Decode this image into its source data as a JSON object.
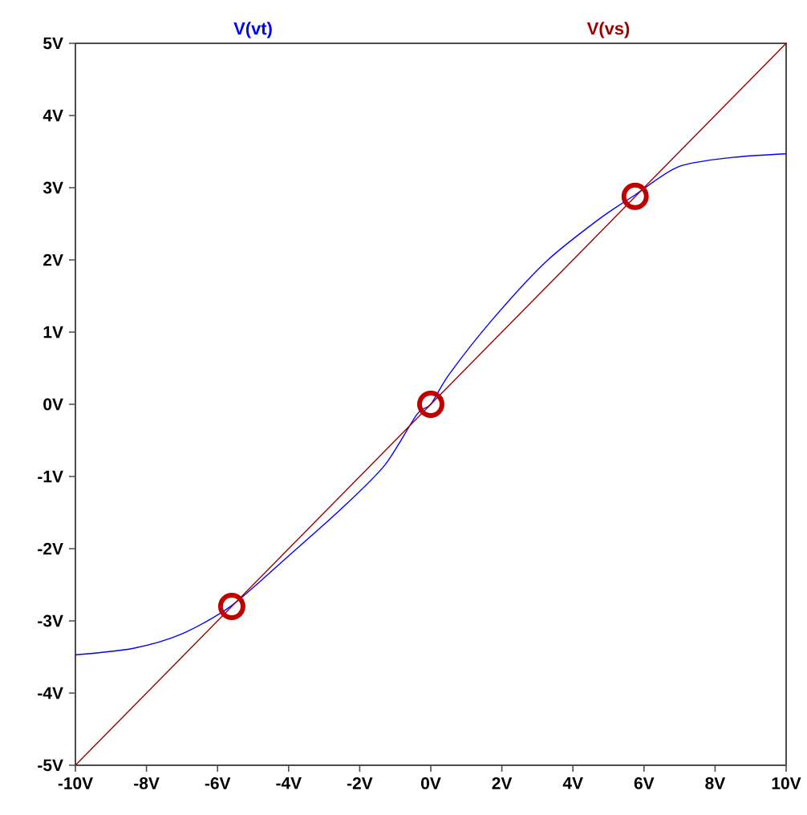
{
  "chart_data": {
    "type": "line",
    "legend": "top",
    "grid": false,
    "xlim": [
      -10,
      10
    ],
    "xticks": [
      {
        "value": -10,
        "label": "-10V"
      },
      {
        "value": -8,
        "label": "-8V"
      },
      {
        "value": -6,
        "label": "-6V"
      },
      {
        "value": -4,
        "label": "-4V"
      },
      {
        "value": -2,
        "label": "-2V"
      },
      {
        "value": 0,
        "label": "0V"
      },
      {
        "value": 2,
        "label": "2V"
      },
      {
        "value": 4,
        "label": "4V"
      },
      {
        "value": 6,
        "label": "6V"
      },
      {
        "value": 8,
        "label": "8V"
      },
      {
        "value": 10,
        "label": "10V"
      }
    ],
    "ylim": [
      -5,
      5
    ],
    "yticks": [
      {
        "value": -5,
        "label": "-5V"
      },
      {
        "value": -4,
        "label": "-4V"
      },
      {
        "value": -3,
        "label": "-3V"
      },
      {
        "value": -2,
        "label": "-2V"
      },
      {
        "value": -1,
        "label": "-1V"
      },
      {
        "value": 0,
        "label": "0V"
      },
      {
        "value": 1,
        "label": "1V"
      },
      {
        "value": 2,
        "label": "2V"
      },
      {
        "value": 3,
        "label": "3V"
      },
      {
        "value": 4,
        "label": "4V"
      },
      {
        "value": 5,
        "label": "5V"
      }
    ],
    "series": [
      {
        "name": "V(vt)",
        "color": "#0000ff",
        "x": [
          -10,
          -8.37,
          -7.0,
          -5.61,
          -4.0,
          -2.5,
          -1.29,
          -0.39,
          0,
          0.51,
          1.71,
          3.23,
          4.72,
          5.75,
          6.97,
          8.5,
          10
        ],
        "values": [
          -3.47,
          -3.38,
          -3.18,
          -2.79,
          -2.1,
          -1.44,
          -0.84,
          -0.14,
          0,
          0.41,
          1.16,
          1.97,
          2.56,
          2.9,
          3.29,
          3.42,
          3.47
        ]
      },
      {
        "name": "V(vs)",
        "color": "#990000",
        "x": [
          -10,
          10
        ],
        "values": [
          -5,
          5
        ]
      },
      {
        "type": "scatter",
        "marker": "circle",
        "color": "#c00000",
        "x": [
          -5.6,
          0,
          5.75
        ],
        "values": [
          -2.8,
          0,
          2.88
        ]
      }
    ]
  }
}
